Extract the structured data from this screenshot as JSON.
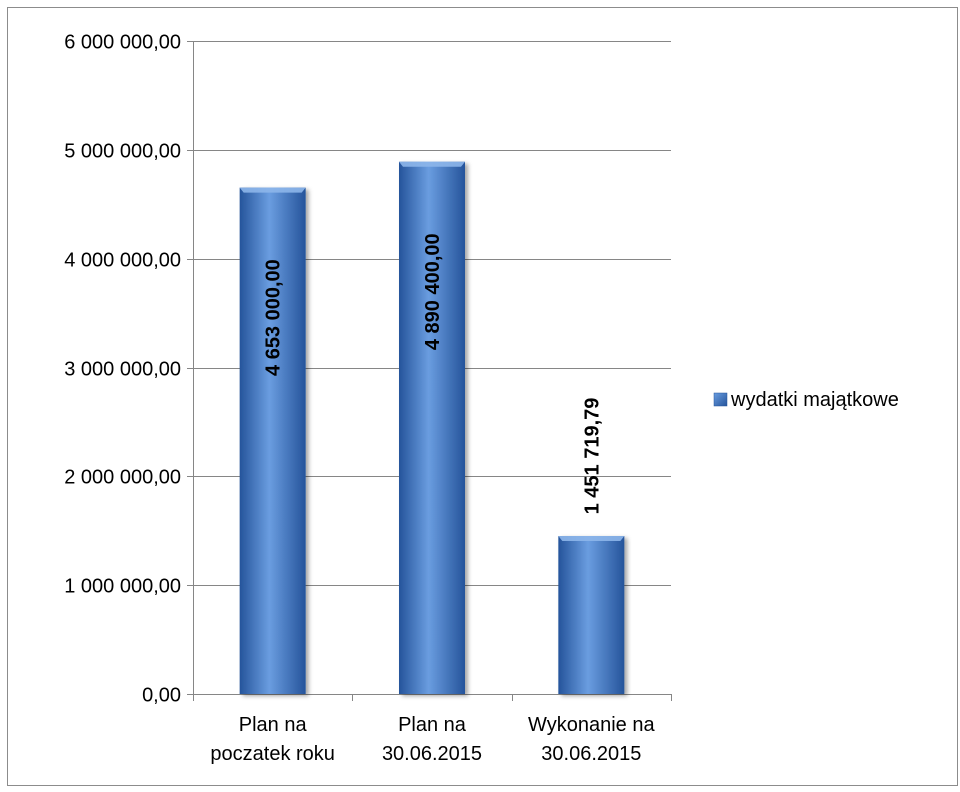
{
  "chart_data": {
    "type": "bar",
    "categories": [
      [
        "Plan na",
        "poczatek roku"
      ],
      [
        "Plan na",
        "30.06.2015"
      ],
      [
        "Wykonanie na",
        "30.06.2015"
      ]
    ],
    "series": [
      {
        "name": "wydatki majątkowe",
        "values": [
          4653000.0,
          4890400.0,
          1451719.79
        ],
        "data_labels": [
          "4 653 000,00",
          "4 890 400,00",
          "1 451 719,79"
        ]
      }
    ],
    "y_ticks": [
      0,
      1000000,
      2000000,
      3000000,
      4000000,
      5000000,
      6000000
    ],
    "y_tick_labels": [
      "0,00",
      "1 000 000,00",
      "2 000 000,00",
      "3 000 000,00",
      "4 000 000,00",
      "5 000 000,00",
      "6 000 000,00"
    ],
    "ylim": [
      0,
      6000000
    ],
    "grid": true,
    "legend_position": "right",
    "colors": {
      "bar_light": "#6a9de0",
      "bar_mid": "#3f78c8",
      "bar_dark": "#25549b",
      "bar_top": "#8db6ea",
      "grid": "#868686",
      "axis": "#868686",
      "text": "#000000"
    }
  }
}
